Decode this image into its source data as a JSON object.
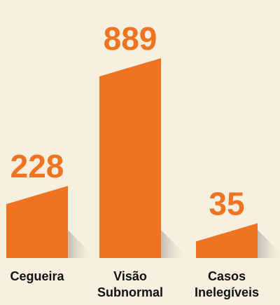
{
  "chart_data": {
    "type": "bar",
    "categories": [
      "Cegueira",
      "Visão Subnormal",
      "Casos Inelegíveis"
    ],
    "values": [
      228,
      889,
      35
    ],
    "color": "#ee7421"
  }
}
